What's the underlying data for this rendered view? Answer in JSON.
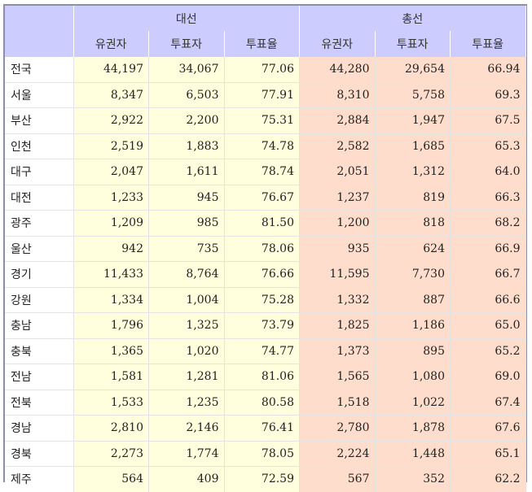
{
  "table": {
    "groups": [
      "대선",
      "총선"
    ],
    "sub_headers": [
      "유권자",
      "투표자",
      "투표율",
      "유권자",
      "투표자",
      "투표율"
    ],
    "rows": [
      {
        "region": "전국",
        "presidential": [
          "44,197",
          "34,067",
          "77.06"
        ],
        "general": [
          "44,280",
          "29,654",
          "66.94"
        ]
      },
      {
        "region": "서울",
        "presidential": [
          "8,347",
          "6,503",
          "77.91"
        ],
        "general": [
          "8,310",
          "5,758",
          "69.3"
        ]
      },
      {
        "region": "부산",
        "presidential": [
          "2,922",
          "2,200",
          "75.31"
        ],
        "general": [
          "2,884",
          "1,947",
          "67.5"
        ]
      },
      {
        "region": "인천",
        "presidential": [
          "2,519",
          "1,883",
          "74.78"
        ],
        "general": [
          "2,582",
          "1,685",
          "65.3"
        ]
      },
      {
        "region": "대구",
        "presidential": [
          "2,047",
          "1,611",
          "78.74"
        ],
        "general": [
          "2,051",
          "1,312",
          "64.0"
        ]
      },
      {
        "region": "대전",
        "presidential": [
          "1,233",
          "945",
          "76.67"
        ],
        "general": [
          "1,237",
          "819",
          "66.3"
        ]
      },
      {
        "region": "광주",
        "presidential": [
          "1,209",
          "985",
          "81.50"
        ],
        "general": [
          "1,200",
          "818",
          "68.2"
        ]
      },
      {
        "region": "울산",
        "presidential": [
          "942",
          "735",
          "78.06"
        ],
        "general": [
          "935",
          "624",
          "66.9"
        ]
      },
      {
        "region": "경기",
        "presidential": [
          "11,433",
          "8,764",
          "76.66"
        ],
        "general": [
          "11,595",
          "7,730",
          "66.7"
        ]
      },
      {
        "region": "강원",
        "presidential": [
          "1,334",
          "1,004",
          "75.28"
        ],
        "general": [
          "1,332",
          "887",
          "66.6"
        ]
      },
      {
        "region": "충남",
        "presidential": [
          "1,796",
          "1,325",
          "73.79"
        ],
        "general": [
          "1,825",
          "1,186",
          "65.0"
        ]
      },
      {
        "region": "충북",
        "presidential": [
          "1,365",
          "1,020",
          "74.77"
        ],
        "general": [
          "1,373",
          "895",
          "65.2"
        ]
      },
      {
        "region": "전남",
        "presidential": [
          "1,581",
          "1,281",
          "81.06"
        ],
        "general": [
          "1,565",
          "1,080",
          "69.0"
        ]
      },
      {
        "region": "전북",
        "presidential": [
          "1,533",
          "1,235",
          "80.58"
        ],
        "general": [
          "1,518",
          "1,022",
          "67.4"
        ]
      },
      {
        "region": "경남",
        "presidential": [
          "2,810",
          "2,146",
          "76.41"
        ],
        "general": [
          "2,780",
          "1,878",
          "67.6"
        ]
      },
      {
        "region": "경북",
        "presidential": [
          "2,273",
          "1,774",
          "78.05"
        ],
        "general": [
          "2,224",
          "1,448",
          "65.1"
        ]
      },
      {
        "region": "제주",
        "presidential": [
          "564",
          "409",
          "72.59"
        ],
        "general": [
          "567",
          "352",
          "62.2"
        ]
      }
    ]
  },
  "colors": {
    "header_bg": "#ccccff",
    "presidential_bg": "#ffffdd",
    "general_bg": "#ffddcc",
    "frame_border": "#8c8fa8"
  }
}
